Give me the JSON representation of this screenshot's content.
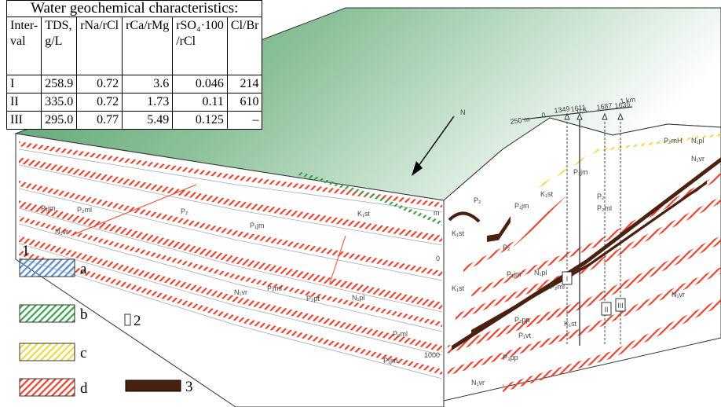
{
  "table": {
    "title": "Water geochemical characteristics:",
    "header": [
      [
        "Inter-",
        "val"
      ],
      [
        "TDS,",
        "g/L"
      ],
      [
        "rNa/rCl"
      ],
      [
        "rCa/rMg"
      ],
      [
        "rSO₄·100",
        "/rCl"
      ],
      [
        "Cl/Br"
      ]
    ],
    "rows": [
      [
        "I",
        "258.9",
        "0.72",
        "3.6",
        "0.046",
        "214"
      ],
      [
        "II",
        "335.0",
        "0.72",
        "1.73",
        "0.11",
        "610"
      ],
      [
        "III",
        "295.0",
        "0.77",
        "5.49",
        "0.125",
        "–"
      ]
    ]
  },
  "legend": {
    "group": "1",
    "items": [
      "a",
      "b",
      "c",
      "d"
    ],
    "item2": "2",
    "item3": "3"
  },
  "diagram": {
    "north": "N",
    "scale": [
      "250 m",
      "0",
      "0,5",
      "1 km"
    ],
    "wells": [
      "1349",
      "1611",
      "1687",
      "1635"
    ],
    "depth": [
      "m",
      "0",
      "1000"
    ],
    "intervals": [
      "I",
      "II",
      "III"
    ],
    "labels": [
      "P₁jm",
      "P₂ml",
      "N₁vr",
      "P₂",
      "K₁st",
      "P₁jm",
      "N₁vr",
      "P₂ml",
      "P₂pt",
      "N₁pl",
      "P₂ml",
      "P₁jm",
      "K₁st",
      "P₂",
      "P₁jm",
      "K₁st",
      "P₂",
      "P₁jm",
      "N₁pl",
      "P₂ml",
      "K₁st",
      "P₂",
      "P₂ml",
      "P₁jm",
      "P₂mH",
      "N₁pl",
      "N₁vr",
      "N₁vr",
      "P₁vt",
      "P₂pp",
      "K₁st",
      "P₃pp",
      "N₁vr"
    ]
  }
}
